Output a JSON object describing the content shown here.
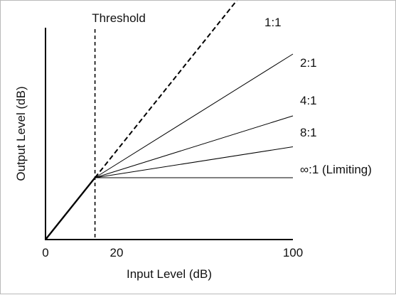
{
  "chart_data": {
    "type": "line",
    "xlabel": "Input Level (dB)",
    "ylabel": "Output Level (dB)",
    "xlim": [
      0,
      100
    ],
    "ylim": [
      0,
      100
    ],
    "x_ticks": [
      {
        "value": 0,
        "label": "0"
      },
      {
        "value": 20,
        "label": "20"
      },
      {
        "value": 100,
        "label": "100"
      }
    ],
    "threshold": {
      "x": 20,
      "label": "Threshold",
      "style": "dashed"
    },
    "grid": false,
    "series": [
      {
        "name": "1:1",
        "style": "dashed",
        "points": [
          [
            20,
            20
          ],
          [
            100,
            100
          ]
        ]
      },
      {
        "name": "2:1",
        "style": "solid",
        "points": [
          [
            20,
            20
          ],
          [
            100,
            60
          ]
        ]
      },
      {
        "name": "4:1",
        "style": "solid",
        "points": [
          [
            20,
            20
          ],
          [
            100,
            40
          ]
        ]
      },
      {
        "name": "8:1",
        "style": "solid",
        "points": [
          [
            20,
            20
          ],
          [
            100,
            30
          ]
        ]
      },
      {
        "name": "∞:1 (Limiting)",
        "style": "solid",
        "points": [
          [
            20,
            20
          ],
          [
            100,
            20
          ]
        ]
      }
    ],
    "below_threshold": {
      "style": "solid-bold",
      "points": [
        [
          0,
          0
        ],
        [
          20,
          20
        ]
      ]
    }
  }
}
